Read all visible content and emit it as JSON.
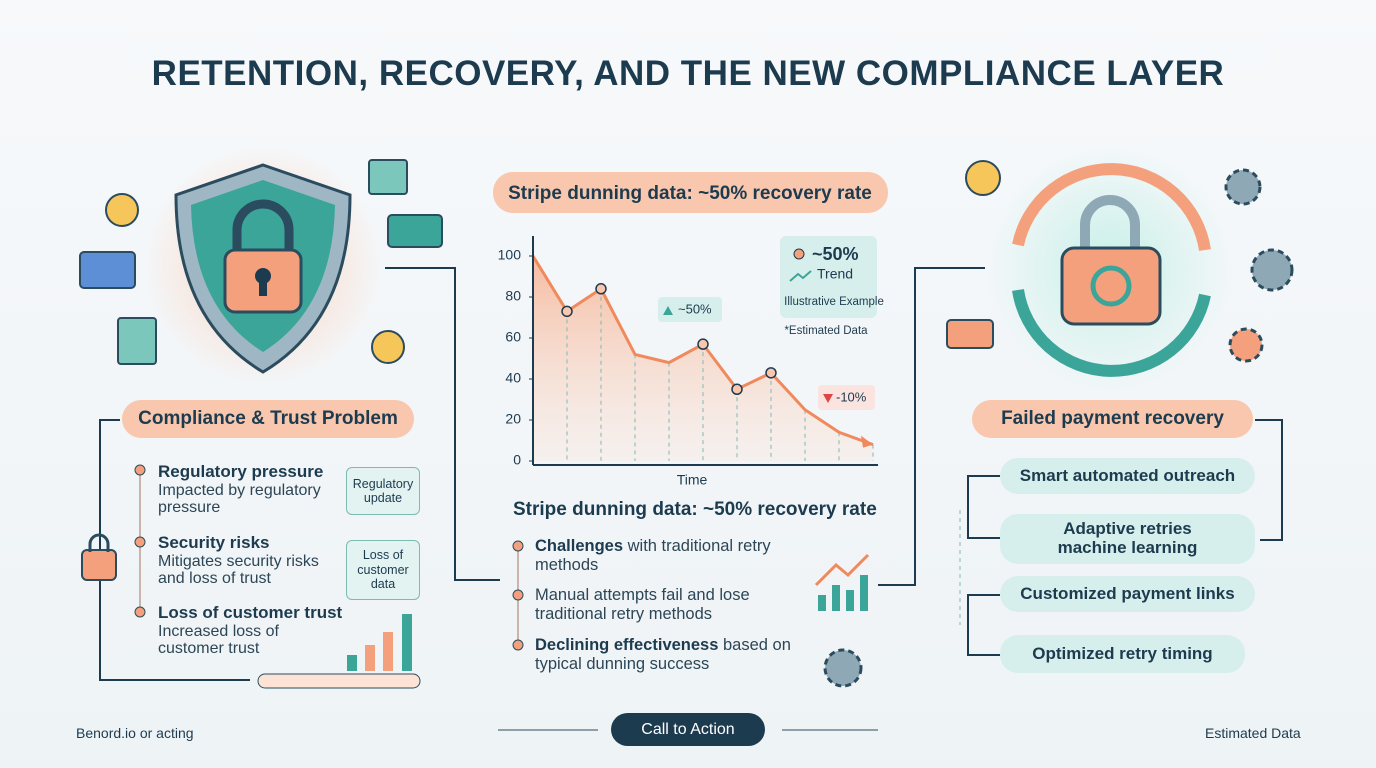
{
  "header": {
    "title": "RETENTION, RECOVERY, AND THE NEW COMPLIANCE LAYER"
  },
  "left": {
    "heading": "Compliance & Trust Problem",
    "items": [
      {
        "title": "Regulatory pressure",
        "text": "Impacted by regulatory pressure"
      },
      {
        "title": "Security risks",
        "text": "Mitigates security risks and loss of trust"
      },
      {
        "title": "Loss of customer trust",
        "text": "Increased loss of customer trust"
      }
    ],
    "tags": [
      "Regulatory update",
      "Loss of customer data"
    ]
  },
  "chart_data": {
    "type": "line",
    "title": "Stripe dunning data: ~50% recovery rate",
    "x_label": "Time",
    "categories": [
      null,
      null,
      null,
      null,
      null,
      null,
      null,
      null,
      null,
      null,
      null
    ],
    "values": [
      100,
      73,
      84,
      52,
      48,
      57,
      35,
      43,
      25,
      14,
      8
    ],
    "color": "#f08a5d",
    "ylim": [
      0,
      100
    ],
    "yticks": [
      0,
      20,
      40,
      60,
      80,
      100
    ],
    "annotations": [
      "~50%",
      "-10%"
    ],
    "legend": {
      "value": "~50%",
      "name": "Trend",
      "note": "Illustrative Example"
    },
    "source": "*Estimated Data"
  },
  "center": {
    "heading": "Stripe dunning data: ~50% recovery rate",
    "items": [
      {
        "bold": "Challenges",
        "text": "with traditional retry methods"
      },
      {
        "text": "Manual attempts fail and lose traditional retry methods"
      },
      {
        "bold": "Declining effectiveness",
        "text": "based on typical dunning success"
      }
    ]
  },
  "right": {
    "heading": "Failed payment recovery",
    "items": [
      "Smart automated outreach",
      "Adaptive retries machine learning",
      "Customized payment links",
      "Optimized retry timing"
    ]
  },
  "footer": {
    "left": "Benord.io or acting",
    "button": "Call to Action",
    "right": "Estimated Data"
  }
}
